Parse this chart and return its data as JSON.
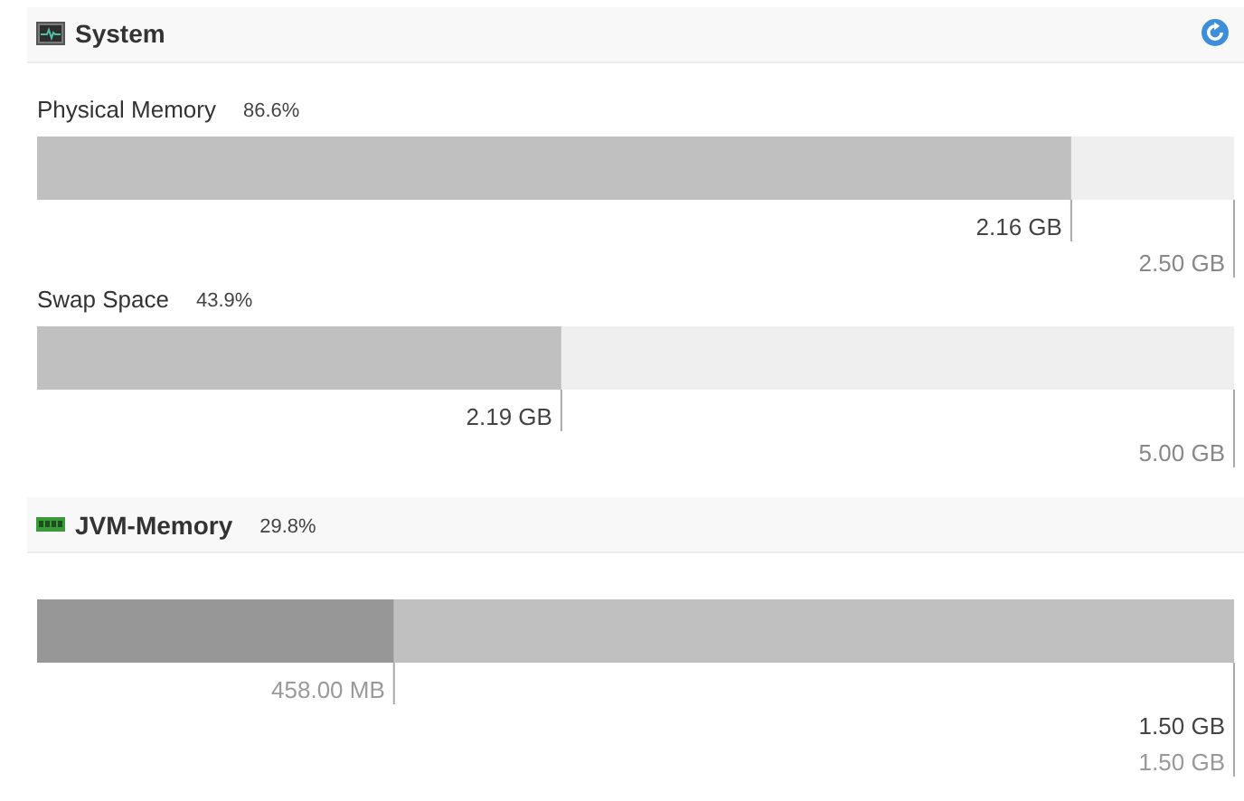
{
  "chart_data": [
    {
      "type": "other",
      "title": "System"
    },
    {
      "type": "bar",
      "title": "Physical Memory",
      "subtitle": "86.6%",
      "orientation": "horizontal",
      "stacked": true,
      "categories": [
        null
      ],
      "series": [
        {
          "color": "#c0c0c0",
          "values": [
            2.16
          ],
          "value_labels": [
            "2.16 GB"
          ]
        },
        {
          "color": "#efefef",
          "values": [
            0.34
          ]
        }
      ],
      "totals": [
        "2.50 GB"
      ],
      "xlim": [
        0,
        2.5
      ],
      "tick_labels": false
    },
    {
      "type": "bar",
      "title": "Swap Space",
      "subtitle": "43.9%",
      "orientation": "horizontal",
      "stacked": true,
      "categories": [
        null
      ],
      "series": [
        {
          "color": "#c0c0c0",
          "values": [
            2.19
          ],
          "value_labels": [
            "2.19 GB"
          ]
        },
        {
          "color": "#efefef",
          "values": [
            2.81
          ]
        }
      ],
      "totals": [
        "5.00 GB"
      ],
      "xlim": [
        0,
        5
      ],
      "tick_labels": false
    },
    {
      "type": "bar",
      "title": "JVM-Memory",
      "subtitle": "29.8%",
      "orientation": "horizontal",
      "stacked": true,
      "categories": [
        null
      ],
      "series": [
        {
          "color": "#979797",
          "values": [
            458
          ],
          "value_labels": [
            "458.00 MB"
          ]
        },
        {
          "color": "#c0c0c0",
          "values": [
            1078
          ]
        }
      ],
      "annotations": [
        "1.50 GB",
        "1.50 GB"
      ],
      "xlim": [
        0,
        1536
      ],
      "tick_labels": false
    }
  ]
}
